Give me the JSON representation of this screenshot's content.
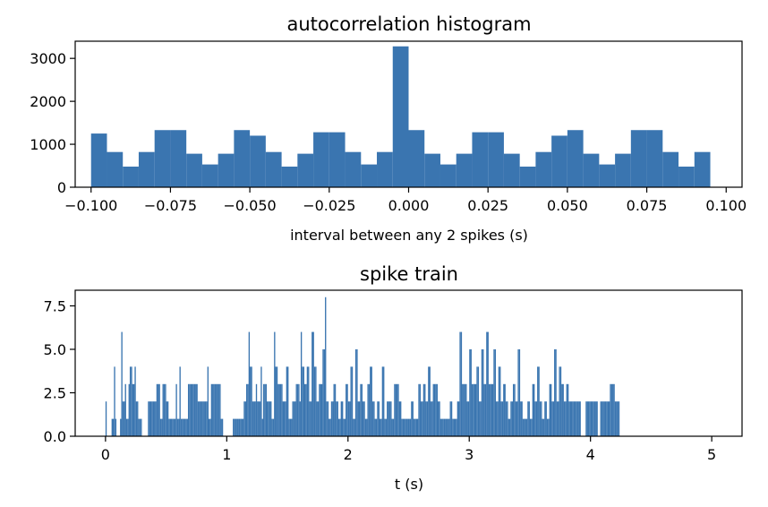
{
  "chart_data": [
    {
      "type": "bar",
      "title": "autocorrelation histogram",
      "xlabel": "interval between any 2 spikes (s)",
      "ylabel": "",
      "xlim": [
        -0.105,
        0.105
      ],
      "ylim": [
        0,
        3400
      ],
      "grid": false,
      "bar_color": "#3a75b0",
      "bin_width": 0.005,
      "bin_starts": [
        -0.1,
        -0.095,
        -0.09,
        -0.085,
        -0.08,
        -0.075,
        -0.07,
        -0.065,
        -0.06,
        -0.055,
        -0.05,
        -0.045,
        -0.04,
        -0.035,
        -0.03,
        -0.025,
        -0.02,
        -0.015,
        -0.01,
        -0.005,
        0.0,
        0.005,
        0.01,
        0.015,
        0.02,
        0.025,
        0.03,
        0.035,
        0.04,
        0.045,
        0.05,
        0.055,
        0.06,
        0.065,
        0.07,
        0.075,
        0.08,
        0.085,
        0.09
      ],
      "values": [
        1250,
        820,
        480,
        820,
        1330,
        1330,
        780,
        530,
        780,
        1330,
        1200,
        820,
        480,
        780,
        1280,
        1280,
        820,
        530,
        820,
        3280,
        1330,
        780,
        530,
        780,
        1280,
        1280,
        780,
        480,
        820,
        1200,
        1330,
        780,
        530,
        780,
        1330,
        1330,
        820,
        480,
        820
      ],
      "xticks": [
        -0.1,
        -0.075,
        -0.05,
        -0.025,
        0.0,
        0.025,
        0.05,
        0.075,
        0.1
      ],
      "xtick_labels": [
        "−0.100",
        "−0.075",
        "−0.050",
        "−0.025",
        "0.000",
        "0.025",
        "0.050",
        "0.075",
        "0.100"
      ],
      "yticks": [
        0,
        1000,
        2000,
        3000
      ],
      "ytick_labels": [
        "0",
        "1000",
        "2000",
        "3000"
      ]
    },
    {
      "type": "bar",
      "title": "spike train",
      "xlabel": "t (s)",
      "ylabel": "",
      "xlim": [
        -0.25,
        5.25
      ],
      "ylim": [
        0,
        8.4
      ],
      "grid": false,
      "bar_color": "#3a75b0",
      "bin_width": 0.01,
      "t_start": 0.0,
      "values": [
        2,
        0,
        0,
        0,
        0,
        1,
        1,
        4,
        1,
        0,
        0,
        0,
        1,
        6,
        2,
        2,
        3,
        1,
        1,
        3,
        4,
        4,
        3,
        3,
        4,
        2,
        2,
        1,
        1,
        1,
        0,
        0,
        0,
        0,
        0,
        2,
        2,
        2,
        2,
        2,
        2,
        2,
        3,
        3,
        3,
        1,
        1,
        3,
        3,
        3,
        2,
        2,
        1,
        1,
        1,
        1,
        1,
        1,
        3,
        1,
        1,
        4,
        1,
        1,
        1,
        1,
        1,
        1,
        3,
        3,
        3,
        3,
        3,
        3,
        3,
        3,
        2,
        2,
        2,
        2,
        2,
        2,
        2,
        2,
        4,
        1,
        1,
        3,
        3,
        3,
        3,
        3,
        3,
        3,
        3,
        1,
        1,
        0,
        0,
        0,
        0,
        0,
        0,
        0,
        0,
        1,
        1,
        1,
        1,
        1,
        1,
        1,
        1,
        1,
        2,
        2,
        3,
        3,
        6,
        4,
        4,
        2,
        2,
        2,
        3,
        2,
        2,
        2,
        4,
        1,
        3,
        3,
        3,
        2,
        2,
        2,
        2,
        1,
        1,
        6,
        4,
        4,
        3,
        3,
        3,
        3,
        2,
        2,
        2,
        4,
        4,
        1,
        1,
        1,
        2,
        2,
        2,
        3,
        3,
        3,
        2,
        6,
        4,
        4,
        3,
        3,
        4,
        4,
        2,
        2,
        6,
        6,
        4,
        4,
        2,
        2,
        3,
        3,
        3,
        5,
        5,
        8,
        2,
        2,
        1,
        1,
        2,
        2,
        3,
        3,
        2,
        2,
        1,
        1,
        2,
        2,
        1,
        1,
        3,
        3,
        2,
        2,
        4,
        4,
        1,
        1,
        5,
        5,
        2,
        2,
        3,
        3,
        2,
        2,
        1,
        1,
        3,
        3,
        4,
        4,
        2,
        2,
        1,
        1,
        2,
        2,
        1,
        1,
        4,
        4,
        1,
        1,
        2,
        2,
        2,
        2,
        1,
        1,
        3,
        3,
        3,
        3,
        2,
        2,
        1,
        1,
        1,
        1,
        1,
        1,
        1,
        1,
        2,
        2,
        1,
        1,
        1,
        1,
        3,
        3,
        2,
        2,
        3,
        3,
        2,
        2,
        4,
        4,
        2,
        2,
        3,
        3,
        3,
        3,
        2,
        2,
        1,
        1,
        1,
        1,
        1,
        1,
        1,
        1,
        2,
        2,
        1,
        1,
        1,
        1,
        2,
        2,
        6,
        6,
        3,
        3,
        3,
        3,
        2,
        2,
        5,
        5,
        3,
        3,
        3,
        3,
        4,
        4,
        2,
        2,
        5,
        5,
        3,
        3,
        6,
        6,
        3,
        3,
        3,
        3,
        5,
        5,
        2,
        2,
        4,
        4,
        2,
        2,
        3,
        3,
        2,
        2,
        1,
        1,
        2,
        2,
        3,
        3,
        2,
        2,
        5,
        5,
        2,
        2,
        1,
        1,
        1,
        1,
        2,
        2,
        1,
        1,
        3,
        3,
        2,
        2,
        4,
        4,
        2,
        2,
        1,
        1,
        2,
        2,
        1,
        1,
        3,
        3,
        2,
        2,
        5,
        5,
        2,
        2,
        4,
        4,
        3,
        3,
        2,
        2,
        3,
        3,
        2,
        2,
        2,
        2,
        2,
        2,
        2,
        2,
        2,
        2,
        0,
        0,
        0,
        0,
        2,
        2,
        2,
        2,
        2,
        2,
        2,
        2,
        2,
        2,
        0,
        0,
        2,
        2,
        2,
        2,
        2,
        2,
        2,
        2,
        3,
        3,
        3,
        3,
        2,
        2,
        2,
        2
      ]
    }
  ]
}
